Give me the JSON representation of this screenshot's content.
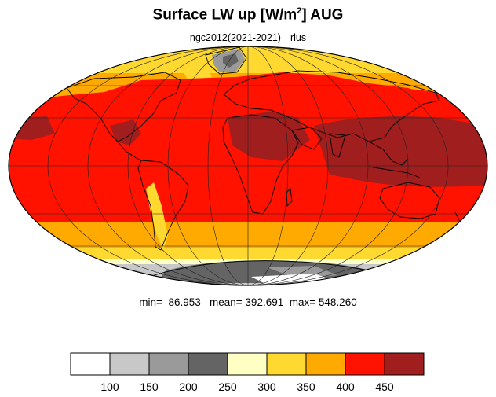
{
  "title": {
    "main": "Surface LW up [W/m",
    "sup": "2",
    "end": "]  AUG"
  },
  "subtitle": {
    "left": "ngc2012(2021-2021)",
    "right": "rlus"
  },
  "stats": {
    "min_label": "min=",
    "min": "86.953",
    "mean_label": "mean=",
    "mean": "392.691",
    "max_label": "max=",
    "max": "548.260"
  },
  "colorbar": {
    "colors": [
      "#ffffff",
      "#c8c8c8",
      "#9a9a9a",
      "#646464",
      "#ffffc4",
      "#ffd92f",
      "#ffaa00",
      "#ff1200",
      "#a01e1e"
    ],
    "labels": [
      "100",
      "150",
      "200",
      "250",
      "300",
      "350",
      "400",
      "450"
    ]
  }
}
